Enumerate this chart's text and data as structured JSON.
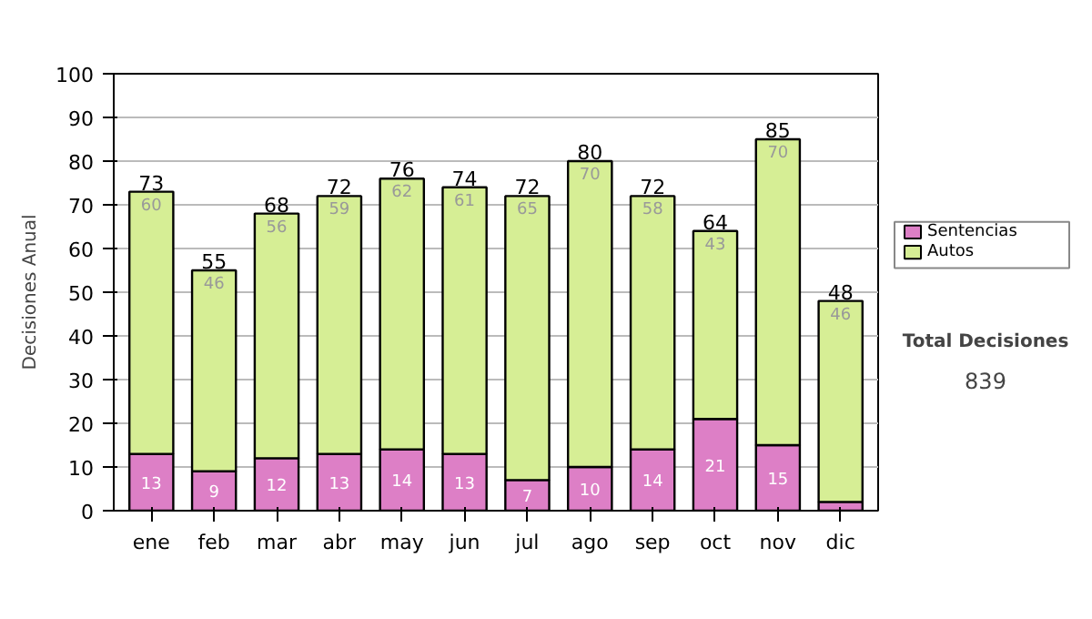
{
  "chart_data": {
    "type": "bar",
    "stacked": true,
    "ylabel": "Decisiones Anual",
    "categories": [
      "ene",
      "feb",
      "mar",
      "abr",
      "may",
      "jun",
      "jul",
      "ago",
      "sep",
      "oct",
      "nov",
      "dic"
    ],
    "series": [
      {
        "name": "Sentencias",
        "color": "#dd7fc6",
        "values": [
          13,
          9,
          12,
          13,
          14,
          13,
          7,
          10,
          14,
          21,
          15,
          2
        ],
        "value_labels": [
          "13",
          "9",
          "12",
          "13",
          "14",
          "13",
          "7",
          "10",
          "14",
          "21",
          "15",
          null
        ]
      },
      {
        "name": "Autos",
        "color": "#d6ee95",
        "values": [
          60,
          46,
          56,
          59,
          62,
          61,
          65,
          70,
          58,
          43,
          70,
          46
        ],
        "value_labels": [
          "60",
          "46",
          "56",
          "59",
          "62",
          "61",
          "65",
          "70",
          "58",
          "43",
          "70",
          "46"
        ]
      }
    ],
    "totals": [
      "73",
      "55",
      "68",
      "72",
      "76",
      "74",
      "72",
      "80",
      "72",
      "64",
      "85",
      "48"
    ],
    "ylim": [
      0,
      100
    ],
    "yticks": [
      0,
      10,
      20,
      30,
      40,
      50,
      60,
      70,
      80,
      90,
      100
    ],
    "grid": "y",
    "legend": "right",
    "annotations": [
      "Total Decisiones",
      "839"
    ]
  }
}
